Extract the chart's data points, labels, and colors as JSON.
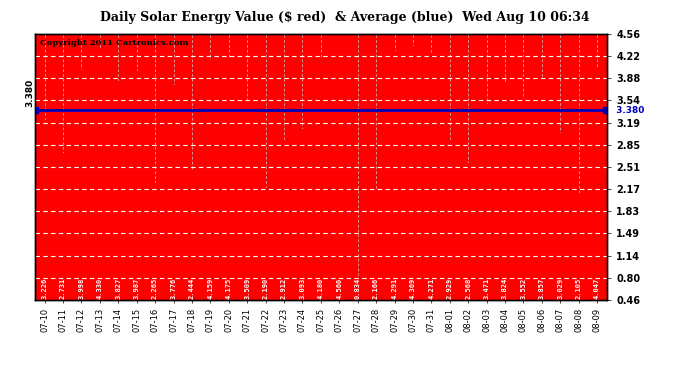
{
  "title": "Daily Solar Energy Value ($ red)  & Average (blue)  Wed Aug 10 06:34",
  "copyright": "Copyright 2011 Cartronics.com",
  "average_value": 3.38,
  "average_label": "3.380",
  "bar_color": "#ff0000",
  "average_color": "#0000bb",
  "background_color": "#ffffff",
  "plot_bg_color": "#ff0000",
  "ylim": [
    0.46,
    4.56
  ],
  "yticks_right": [
    0.46,
    0.8,
    1.14,
    1.49,
    1.83,
    2.17,
    2.51,
    2.85,
    3.19,
    3.54,
    3.88,
    4.22,
    4.56
  ],
  "categories": [
    "07-10",
    "07-11",
    "07-12",
    "07-13",
    "07-14",
    "07-15",
    "07-16",
    "07-17",
    "07-18",
    "07-19",
    "07-20",
    "07-21",
    "07-22",
    "07-23",
    "07-24",
    "07-25",
    "07-26",
    "07-27",
    "07-28",
    "07-29",
    "07-30",
    "07-31",
    "08-01",
    "08-02",
    "08-03",
    "08-04",
    "08-05",
    "08-06",
    "08-07",
    "08-08",
    "08-09"
  ],
  "values": [
    3.226,
    2.731,
    3.998,
    4.33,
    3.827,
    3.987,
    2.265,
    3.776,
    2.444,
    4.159,
    4.175,
    3.509,
    2.19,
    2.912,
    3.093,
    4.18,
    4.56,
    0.834,
    2.166,
    4.291,
    4.369,
    4.271,
    2.929,
    2.568,
    3.471,
    3.824,
    3.552,
    3.857,
    3.029,
    2.105,
    4.047
  ],
  "value_labels": [
    "3.226",
    "2.731",
    "3.998",
    "4.330",
    "3.827",
    "3.987",
    "2.265",
    "3.776",
    "2.444",
    "4.159",
    "4.175",
    "3.509",
    "2.190",
    "2.912",
    "3.093",
    "4.180",
    "4.560",
    "0.834",
    "2.166",
    "4.291",
    "4.369",
    "4.271",
    "2.929",
    "2.568",
    "3.471",
    "3.824",
    "3.552",
    "3.857",
    "3.029",
    "2.105",
    "4.047"
  ]
}
